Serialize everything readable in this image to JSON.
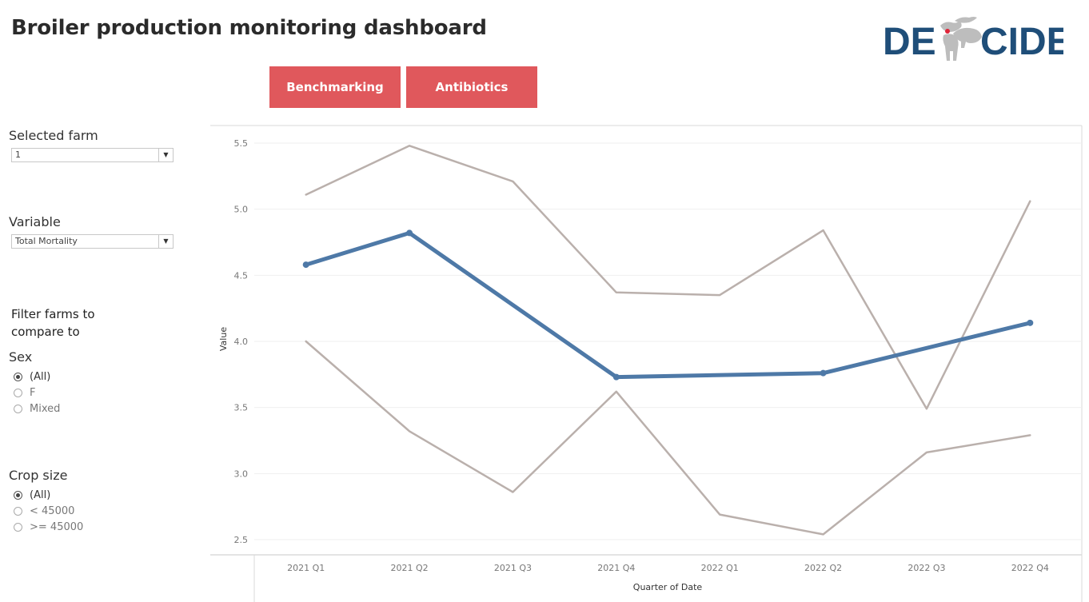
{
  "header": {
    "title": "Broiler production monitoring dashboard",
    "logo_text_left": "DE",
    "logo_text_right": "CIDE"
  },
  "nav": {
    "benchmarking_label": "Benchmarking",
    "antibiotics_label": "Antibiotics"
  },
  "filters": {
    "selected_farm_label": "Selected farm",
    "selected_farm_value": "1",
    "variable_label": "Variable",
    "variable_value": "Total Mortality",
    "compare_heading": "Filter farms to compare to",
    "sex_label": "Sex",
    "sex_options": [
      {
        "label": "(All)",
        "selected": true
      },
      {
        "label": "F",
        "selected": false
      },
      {
        "label": "Mixed",
        "selected": false
      }
    ],
    "crop_label": "Crop size",
    "crop_options": [
      {
        "label": "(All)",
        "selected": true
      },
      {
        "label": "< 45000",
        "selected": false
      },
      {
        "label": ">= 45000",
        "selected": false
      }
    ]
  },
  "colors": {
    "accent": "#e0585c",
    "selected_series": "#4e79a7",
    "comparison_series": "#bab0ac",
    "logo_blue": "#1f4e79"
  },
  "chart_data": {
    "type": "line",
    "xlabel": "Quarter of Date",
    "ylabel": "Value",
    "categories": [
      "2021 Q1",
      "2021 Q2",
      "2021 Q3",
      "2021 Q4",
      "2022 Q1",
      "2022 Q2",
      "2022 Q3",
      "2022 Q4"
    ],
    "ylim": [
      2.4,
      5.6
    ],
    "yticks": [
      "2.5",
      "3.0",
      "3.5",
      "4.0",
      "4.5",
      "5.0",
      "5.5"
    ],
    "grid": true,
    "series": [
      {
        "role": "upper",
        "values": [
          5.11,
          5.48,
          5.21,
          4.37,
          4.35,
          4.84,
          3.49,
          5.06
        ]
      },
      {
        "role": "lower",
        "values": [
          4.0,
          3.32,
          2.86,
          3.62,
          2.69,
          2.54,
          3.16,
          3.29
        ]
      },
      {
        "role": "selected",
        "values": [
          4.58,
          4.82,
          null,
          3.73,
          null,
          3.76,
          null,
          4.14
        ]
      }
    ]
  }
}
